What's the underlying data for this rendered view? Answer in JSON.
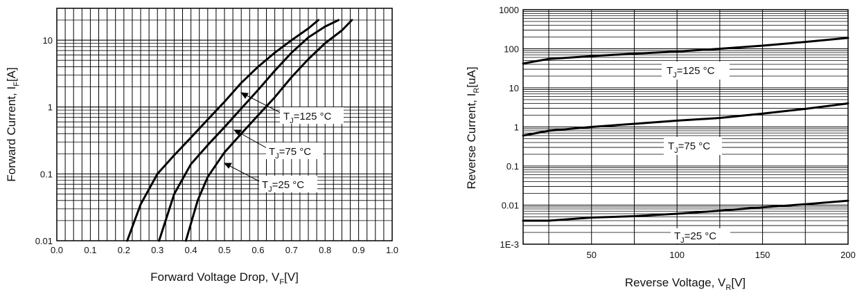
{
  "chart_data": [
    {
      "type": "line",
      "title": "",
      "xlabel": "Forward Voltage Drop, V",
      "xlabel_sub": "F",
      "xlabel_unit": "[V]",
      "ylabel": "Forward Current, I",
      "ylabel_sub": "F",
      "ylabel_unit": "[A]",
      "xlim": [
        0.0,
        1.0
      ],
      "ylim": [
        0.01,
        30
      ],
      "yscale": "log",
      "grid": true,
      "x_ticks": [
        "0.0",
        "0.1",
        "0.2",
        "0.3",
        "0.4",
        "0.5",
        "0.6",
        "0.7",
        "0.8",
        "0.9",
        "1.0"
      ],
      "x_tick_values": [
        0.0,
        0.1,
        0.2,
        0.3,
        0.4,
        0.5,
        0.6,
        0.7,
        0.8,
        0.9,
        1.0
      ],
      "y_ticks": [
        "0.01",
        "0.1",
        "1",
        "10"
      ],
      "y_tick_values": [
        0.01,
        0.1,
        1,
        10
      ],
      "series": [
        {
          "name": "T_J=125 °C",
          "x": [
            0.21,
            0.25,
            0.3,
            0.35,
            0.4,
            0.45,
            0.5,
            0.55,
            0.6,
            0.65,
            0.7,
            0.75,
            0.78
          ],
          "y": [
            0.01,
            0.035,
            0.1,
            0.19,
            0.35,
            0.65,
            1.2,
            2.3,
            4.0,
            6.5,
            10,
            15,
            20
          ]
        },
        {
          "name": "T_J=75 °C",
          "x": [
            0.305,
            0.35,
            0.4,
            0.45,
            0.5,
            0.55,
            0.6,
            0.65,
            0.7,
            0.75,
            0.8,
            0.84
          ],
          "y": [
            0.01,
            0.05,
            0.14,
            0.27,
            0.5,
            0.95,
            1.8,
            3.5,
            6.5,
            11,
            16,
            20
          ]
        },
        {
          "name": "T_J=25 °C",
          "x": [
            0.385,
            0.42,
            0.45,
            0.5,
            0.55,
            0.6,
            0.65,
            0.7,
            0.75,
            0.8,
            0.85,
            0.88
          ],
          "y": [
            0.01,
            0.04,
            0.09,
            0.21,
            0.4,
            0.75,
            1.4,
            2.8,
            5.2,
            9,
            14,
            20
          ]
        }
      ],
      "annotations": [
        {
          "text": "T",
          "sub": "J",
          "rest": "=125 °C"
        },
        {
          "text": "T",
          "sub": "J",
          "rest": "=75 °C"
        },
        {
          "text": "T",
          "sub": "J",
          "rest": "=25 °C"
        }
      ]
    },
    {
      "type": "line",
      "title": "",
      "xlabel": "Reverse Voltage, V",
      "xlabel_sub": "R",
      "xlabel_unit": "[V]",
      "ylabel": "Reverse Current, I",
      "ylabel_sub": "R",
      "ylabel_unit": "[uA]",
      "xlim": [
        10,
        200
      ],
      "ylim": [
        0.001,
        1000
      ],
      "yscale": "log",
      "grid": true,
      "x_ticks": [
        "50",
        "100",
        "150",
        "200"
      ],
      "x_tick_values": [
        50,
        100,
        150,
        200
      ],
      "y_ticks": [
        "1000",
        "100",
        "10",
        "1",
        "0.1",
        "0.01",
        "1E-3"
      ],
      "y_tick_values": [
        1000,
        100,
        10,
        1,
        0.1,
        0.01,
        0.001
      ],
      "series": [
        {
          "name": "T_J=125 °C",
          "x": [
            10,
            25,
            50,
            75,
            100,
            125,
            150,
            175,
            200
          ],
          "y": [
            42,
            55,
            65,
            75,
            85,
            100,
            120,
            150,
            190
          ]
        },
        {
          "name": "T_J=75 °C",
          "x": [
            10,
            25,
            50,
            75,
            100,
            125,
            150,
            175,
            200
          ],
          "y": [
            0.6,
            0.8,
            1.0,
            1.2,
            1.45,
            1.7,
            2.2,
            2.9,
            4.0
          ]
        },
        {
          "name": "T_J=25 °C",
          "x": [
            10,
            25,
            50,
            75,
            100,
            125,
            150,
            175,
            200
          ],
          "y": [
            0.004,
            0.004,
            0.0048,
            0.0052,
            0.006,
            0.0072,
            0.0088,
            0.0105,
            0.013
          ]
        }
      ],
      "annotations": [
        {
          "text": "T",
          "sub": "J",
          "rest": "=125 °C"
        },
        {
          "text": "T",
          "sub": "J",
          "rest": "=75 °C"
        },
        {
          "text": "T",
          "sub": "J",
          "rest": "=25 °C"
        }
      ]
    }
  ]
}
